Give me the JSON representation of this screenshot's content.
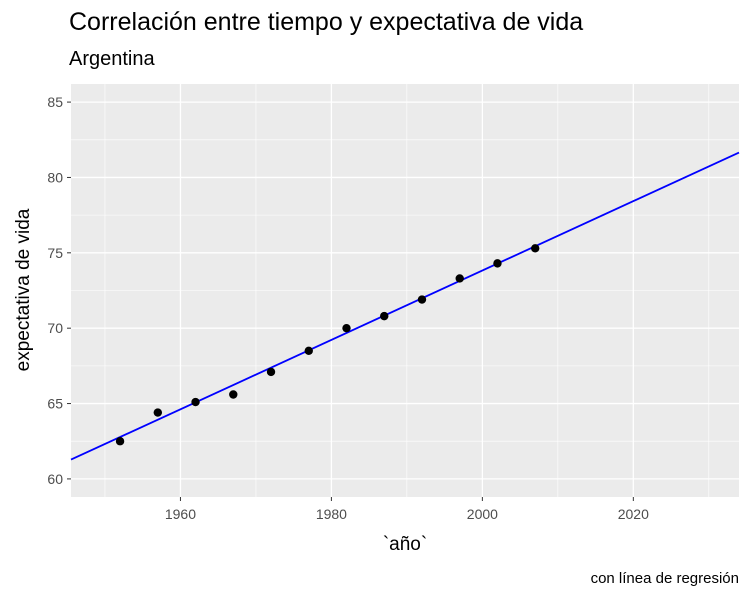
{
  "chart_data": {
    "type": "scatter",
    "title": "Correlación entre tiempo y expectativa de vida",
    "subtitle": "Argentina",
    "xlabel": "`año`",
    "ylabel": "expectativa de vida",
    "caption": "con línea de regresión",
    "xlim": [
      1945.5,
      2034
    ],
    "ylim": [
      58.8,
      86.2
    ],
    "x_ticks": [
      1960,
      1980,
      2000,
      2020
    ],
    "y_ticks": [
      60,
      65,
      70,
      75,
      80,
      85
    ],
    "grid": true,
    "series": [
      {
        "x": [
          1952,
          1957,
          1962,
          1967,
          1972,
          1977,
          1982,
          1987,
          1992,
          1997,
          2002,
          2007
        ],
        "y": [
          62.5,
          64.4,
          65.1,
          65.6,
          67.1,
          68.5,
          70.0,
          70.8,
          71.9,
          73.3,
          74.3,
          75.3
        ]
      }
    ],
    "regression_line": {
      "color": "#0000ff",
      "x": [
        1945.5,
        2034
      ],
      "y": [
        61.28,
        81.65
      ]
    },
    "colors": {
      "panel_background": "#ebebeb",
      "grid": "#ffffff",
      "points": "#000000",
      "line": "#0000ff"
    }
  }
}
